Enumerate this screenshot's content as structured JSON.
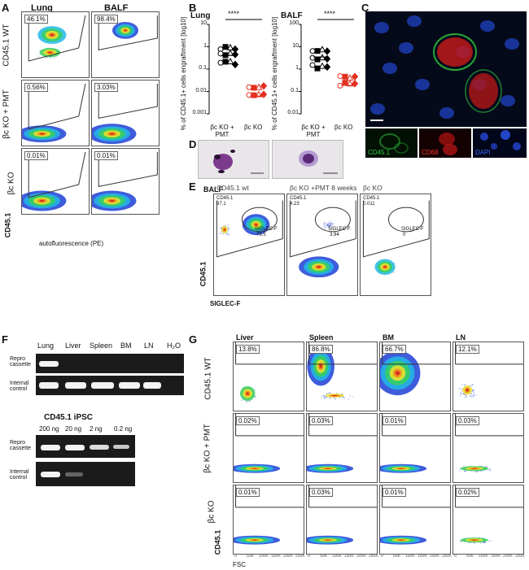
{
  "panels": {
    "A": {
      "letter": "A",
      "col_labels": [
        "Lung",
        "BALF"
      ],
      "row_labels": [
        "CD45.1 WT",
        "βc KO + PMT",
        "βc KO"
      ],
      "percentages": [
        [
          "46.1%",
          "98.4%"
        ],
        [
          "0.56%",
          "3.03%"
        ],
        [
          "0.01%",
          "0.01%"
        ]
      ],
      "xlabel": "autofluorescence (PE)",
      "ylabel": "CD45.1"
    },
    "B": {
      "letter": "B",
      "lung": {
        "title": "Lung",
        "ylabel": "% of CD45.1+ cells engraftment [log10]",
        "sig": "****",
        "yticks": [
          "10",
          "1",
          "0.1",
          "0.01",
          "0.001"
        ],
        "groups": [
          "βc KO + PMT",
          "βc KO"
        ]
      },
      "balf": {
        "title": "BALF",
        "ylabel": "% of CD45.1+ cells engraftment [log10]",
        "sig": "****",
        "yticks": [
          "100",
          "10",
          "1",
          "0.1",
          "0.01"
        ],
        "groups": [
          "βc KO + PMT",
          "βc KO"
        ]
      }
    },
    "C": {
      "letter": "C",
      "channels": [
        "CD45.1",
        "CD68",
        "DAPI"
      ],
      "colors": {
        "cd45": "#2ecc40",
        "cd68": "#ff3030",
        "dapi": "#3a6bff"
      }
    },
    "D": {
      "letter": "D"
    },
    "E": {
      "letter": "E",
      "sample": "BALF",
      "titles": [
        "CD45.1 wt",
        "βc KO +PMT 8 weeks",
        "βc KO"
      ],
      "gates": [
        {
          "cd45": "CD45.1",
          "cd45v": "97.1",
          "sig": "SIGLEC-F",
          "sigv": "79.5"
        },
        {
          "cd45": "CD45.1",
          "cd45v": "4.23",
          "sig": "SIGLEC-F",
          "sigv": "3.94"
        },
        {
          "cd45": "CD45.1",
          "cd45v": "0.011",
          "sig": "SIGLEC-F",
          "sigv": "0"
        }
      ],
      "xlabel": "SIGLEC-F",
      "ylabel": "CD45.1"
    },
    "F": {
      "letter": "F",
      "lanes": [
        "Lung",
        "Liver",
        "Spleen",
        "BM",
        "LN",
        "H₂O"
      ],
      "rows": [
        "Repro cassette",
        "Internal control"
      ],
      "ipsc_title": "CD45.1 iPSC",
      "ipsc_lanes": [
        "200 ng",
        "20 ng",
        "2 ng",
        "0.2 ng"
      ]
    },
    "G": {
      "letter": "G",
      "cols": [
        "Liver",
        "Spleen",
        "BM",
        "LN"
      ],
      "rows": [
        "CD45.1 WT",
        "βc KO + PMT",
        "βc KO"
      ],
      "percentages": [
        [
          "13.8%",
          "86.8%",
          "66.7%",
          "12.1%"
        ],
        [
          "0.02%",
          "0.03%",
          "0.01%",
          "0.03%"
        ],
        [
          "0.01%",
          "0.03%",
          "0.01%",
          "0.02%"
        ]
      ],
      "xlabel": "FSC",
      "ylabel": "CD45.1",
      "xticks": [
        "0",
        "50K",
        "100K",
        "150K",
        "200K",
        "250K"
      ]
    }
  }
}
